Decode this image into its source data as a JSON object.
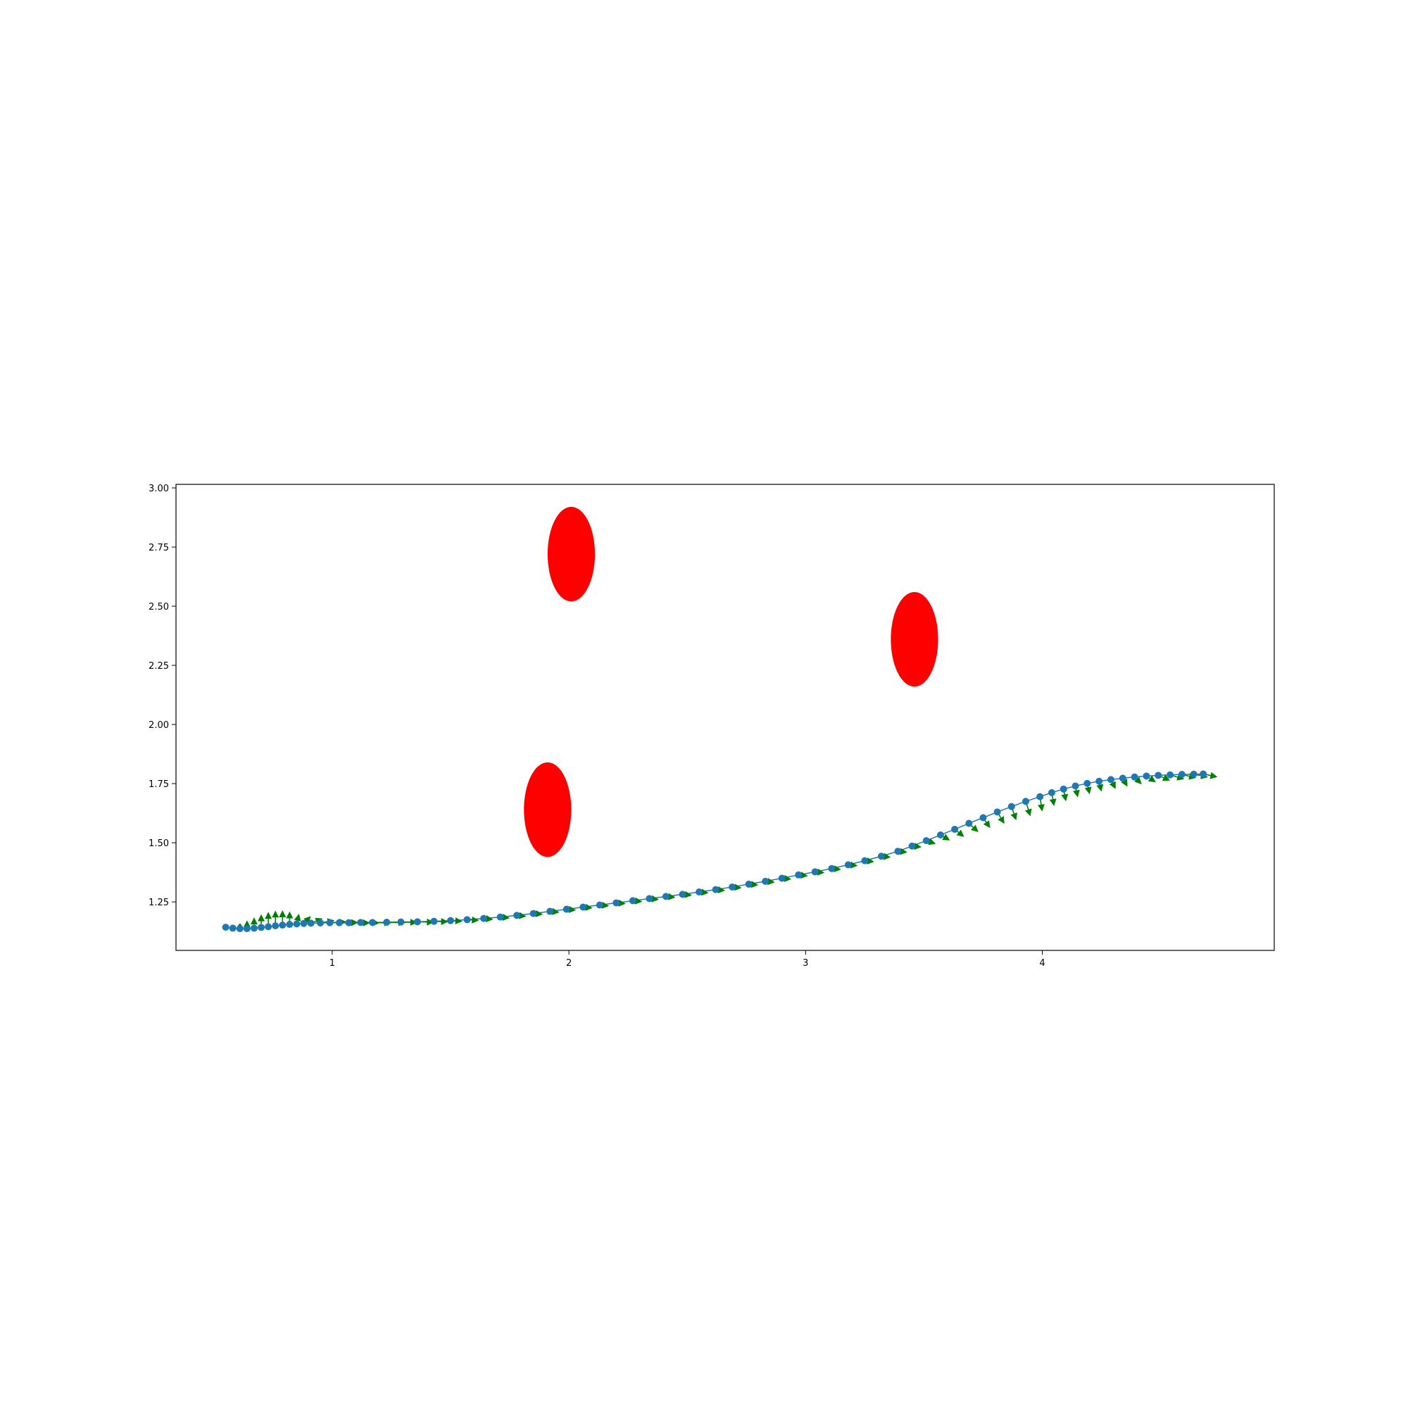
{
  "chart_data": {
    "type": "scatter",
    "title": "",
    "xlabel": "",
    "ylabel": "",
    "xlim": [
      0.34,
      4.98
    ],
    "ylim": [
      1.045,
      3.015
    ],
    "grid": false,
    "x_ticks": [
      {
        "value": 1,
        "label": "1"
      },
      {
        "value": 2,
        "label": "2"
      },
      {
        "value": 3,
        "label": "3"
      },
      {
        "value": 4,
        "label": "4"
      }
    ],
    "y_ticks": [
      {
        "value": 1.25,
        "label": "1.25"
      },
      {
        "value": 1.5,
        "label": "1.50"
      },
      {
        "value": 1.75,
        "label": "1.75"
      },
      {
        "value": 2.0,
        "label": "2.00"
      },
      {
        "value": 2.25,
        "label": "2.25"
      },
      {
        "value": 2.5,
        "label": "2.50"
      },
      {
        "value": 2.75,
        "label": "2.75"
      },
      {
        "value": 3.0,
        "label": "3.00"
      }
    ],
    "obstacles": {
      "color": "#ff0000",
      "radius": 0.2,
      "centers": [
        [
          2.01,
          2.72
        ],
        [
          1.91,
          1.64
        ],
        [
          3.46,
          2.36
        ]
      ]
    },
    "trajectory": {
      "point_color": "#1f77b4",
      "arrow_color": "#008000",
      "points": [
        [
          0.55,
          1.143
        ],
        [
          0.58,
          1.139
        ],
        [
          0.61,
          1.137
        ],
        [
          0.64,
          1.137
        ],
        [
          0.67,
          1.139
        ],
        [
          0.7,
          1.142
        ],
        [
          0.73,
          1.145
        ],
        [
          0.76,
          1.149
        ],
        [
          0.79,
          1.152
        ],
        [
          0.82,
          1.155
        ],
        [
          0.85,
          1.157
        ],
        [
          0.88,
          1.159
        ],
        [
          0.91,
          1.16
        ],
        [
          0.95,
          1.161
        ],
        [
          0.99,
          1.162
        ],
        [
          1.03,
          1.162
        ],
        [
          1.07,
          1.162
        ],
        [
          1.12,
          1.163
        ],
        [
          1.17,
          1.163
        ],
        [
          1.23,
          1.164
        ],
        [
          1.29,
          1.165
        ],
        [
          1.36,
          1.166
        ],
        [
          1.43,
          1.168
        ],
        [
          1.5,
          1.171
        ],
        [
          1.57,
          1.175
        ],
        [
          1.64,
          1.18
        ],
        [
          1.71,
          1.186
        ],
        [
          1.78,
          1.193
        ],
        [
          1.85,
          1.201
        ],
        [
          1.92,
          1.21
        ],
        [
          1.99,
          1.219
        ],
        [
          2.06,
          1.228
        ],
        [
          2.13,
          1.237
        ],
        [
          2.2,
          1.246
        ],
        [
          2.27,
          1.255
        ],
        [
          2.34,
          1.264
        ],
        [
          2.41,
          1.273
        ],
        [
          2.48,
          1.282
        ],
        [
          2.55,
          1.292
        ],
        [
          2.62,
          1.302
        ],
        [
          2.69,
          1.313
        ],
        [
          2.76,
          1.325
        ],
        [
          2.83,
          1.337
        ],
        [
          2.9,
          1.35
        ],
        [
          2.97,
          1.364
        ],
        [
          3.04,
          1.377
        ],
        [
          3.11,
          1.391
        ],
        [
          3.18,
          1.407
        ],
        [
          3.25,
          1.424
        ],
        [
          3.32,
          1.443
        ],
        [
          3.39,
          1.464
        ],
        [
          3.45,
          1.486
        ],
        [
          3.51,
          1.509
        ],
        [
          3.57,
          1.533
        ],
        [
          3.63,
          1.557
        ],
        [
          3.69,
          1.582
        ],
        [
          3.75,
          1.606
        ],
        [
          3.81,
          1.63
        ],
        [
          3.87,
          1.653
        ],
        [
          3.93,
          1.675
        ],
        [
          3.99,
          1.695
        ],
        [
          4.04,
          1.712
        ],
        [
          4.09,
          1.727
        ],
        [
          4.14,
          1.74
        ],
        [
          4.19,
          1.751
        ],
        [
          4.24,
          1.76
        ],
        [
          4.29,
          1.767
        ],
        [
          4.34,
          1.773
        ],
        [
          4.39,
          1.778
        ],
        [
          4.44,
          1.782
        ],
        [
          4.49,
          1.785
        ],
        [
          4.54,
          1.787
        ],
        [
          4.59,
          1.789
        ],
        [
          4.64,
          1.79
        ],
        [
          4.68,
          1.791
        ]
      ],
      "arrow_tips": [
        [
          0.55,
          1.143
        ],
        [
          0.58,
          1.15
        ],
        [
          0.61,
          1.16
        ],
        [
          0.64,
          1.172
        ],
        [
          0.67,
          1.185
        ],
        [
          0.7,
          1.198
        ],
        [
          0.73,
          1.208
        ],
        [
          0.76,
          1.214
        ],
        [
          0.79,
          1.215
        ],
        [
          0.82,
          1.21
        ],
        [
          0.86,
          1.2
        ],
        [
          0.91,
          1.19
        ],
        [
          0.96,
          1.18
        ],
        [
          1.01,
          1.172
        ],
        [
          1.06,
          1.166
        ],
        [
          1.11,
          1.163
        ],
        [
          1.16,
          1.161
        ],
        [
          1.2,
          1.161
        ],
        [
          1.25,
          1.161
        ],
        [
          1.31,
          1.162
        ],
        [
          1.36,
          1.163
        ],
        [
          1.43,
          1.164
        ],
        [
          1.49,
          1.166
        ],
        [
          1.55,
          1.168
        ],
        [
          1.62,
          1.172
        ],
        [
          1.68,
          1.176
        ],
        [
          1.75,
          1.182
        ],
        [
          1.82,
          1.189
        ],
        [
          1.89,
          1.197
        ],
        [
          1.96,
          1.206
        ],
        [
          2.03,
          1.215
        ],
        [
          2.1,
          1.224
        ],
        [
          2.17,
          1.233
        ],
        [
          2.24,
          1.242
        ],
        [
          2.31,
          1.251
        ],
        [
          2.38,
          1.26
        ],
        [
          2.45,
          1.269
        ],
        [
          2.52,
          1.278
        ],
        [
          2.59,
          1.288
        ],
        [
          2.66,
          1.298
        ],
        [
          2.73,
          1.309
        ],
        [
          2.8,
          1.321
        ],
        [
          2.87,
          1.333
        ],
        [
          2.94,
          1.346
        ],
        [
          3.01,
          1.36
        ],
        [
          3.08,
          1.373
        ],
        [
          3.15,
          1.387
        ],
        [
          3.22,
          1.403
        ],
        [
          3.29,
          1.42
        ],
        [
          3.36,
          1.439
        ],
        [
          3.43,
          1.46
        ],
        [
          3.49,
          1.482
        ],
        [
          3.55,
          1.495
        ],
        [
          3.61,
          1.51
        ],
        [
          3.67,
          1.525
        ],
        [
          3.73,
          1.545
        ],
        [
          3.78,
          1.562
        ],
        [
          3.84,
          1.58
        ],
        [
          3.89,
          1.595
        ],
        [
          3.95,
          1.612
        ],
        [
          4.0,
          1.632
        ],
        [
          4.05,
          1.655
        ],
        [
          4.1,
          1.675
        ],
        [
          4.15,
          1.692
        ],
        [
          4.2,
          1.705
        ],
        [
          4.25,
          1.716
        ],
        [
          4.31,
          1.727
        ],
        [
          4.36,
          1.737
        ],
        [
          4.42,
          1.747
        ],
        [
          4.48,
          1.756
        ],
        [
          4.54,
          1.763
        ],
        [
          4.6,
          1.769
        ],
        [
          4.65,
          1.774
        ],
        [
          4.7,
          1.777
        ],
        [
          4.74,
          1.778
        ]
      ]
    }
  }
}
